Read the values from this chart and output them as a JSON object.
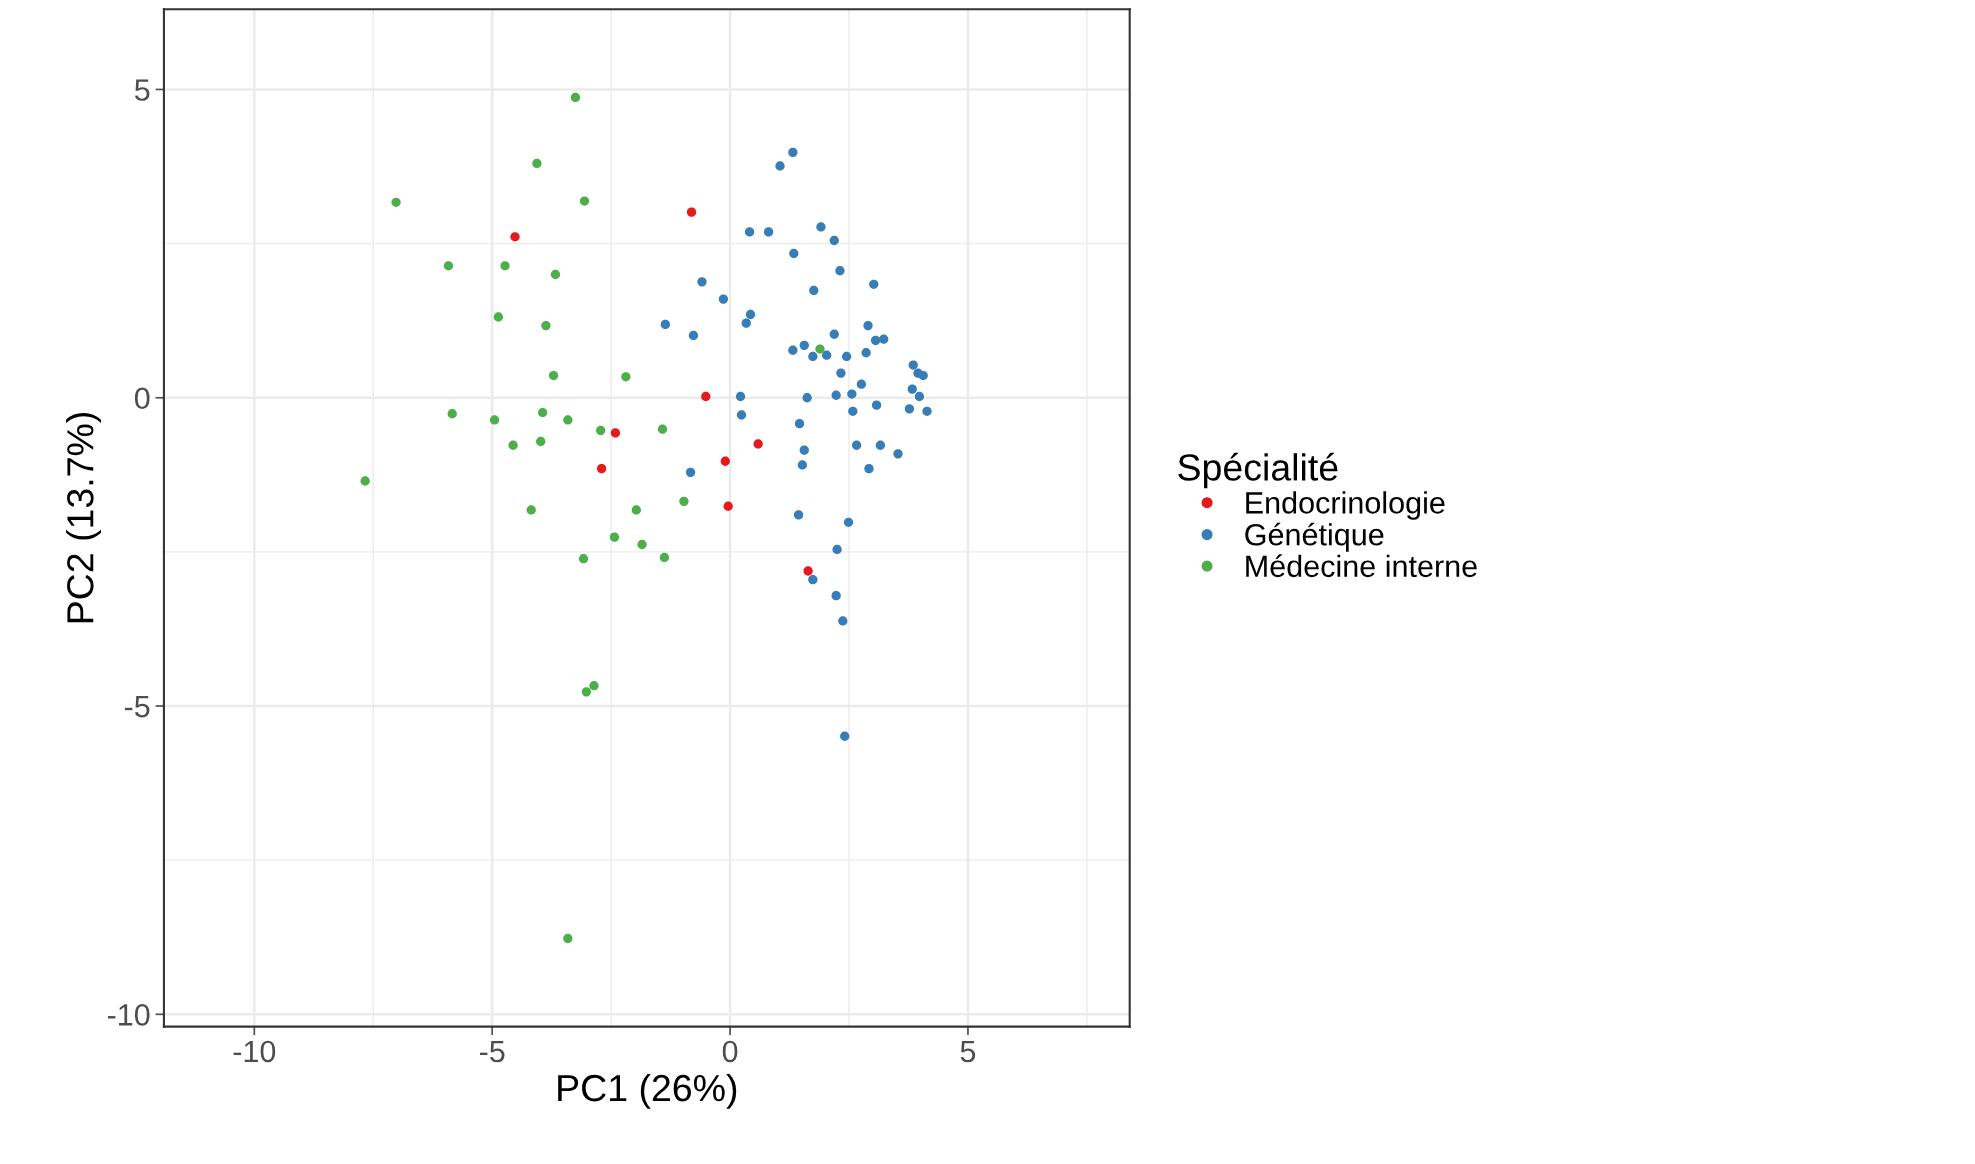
{
  "chart_data": {
    "type": "scatter",
    "xlabel": "PC1 (26%)",
    "ylabel": "PC2 (13.7%)",
    "legend_title": "Spécialité",
    "xlim": [
      -11.9,
      8.4
    ],
    "ylim": [
      -10.2,
      6.3
    ],
    "xticks": [
      -10,
      -5,
      0,
      5
    ],
    "yticks": [
      -10,
      -5,
      0,
      5
    ],
    "grid": true,
    "legend": "right",
    "marker": "circle",
    "series": [
      {
        "name": "Endocrinologie",
        "color": "#e41a1c",
        "x": [
          -4.52,
          -0.81,
          -0.51,
          -2.41,
          -2.7,
          0.59,
          -0.1,
          -0.04,
          1.64
        ],
        "values": [
          2.61,
          3.01,
          0.02,
          -0.57,
          -1.15,
          -0.75,
          -1.03,
          -1.76,
          -2.81
        ]
      },
      {
        "name": "Génétique",
        "color": "#377eb8",
        "x": [
          1.32,
          1.05,
          0.41,
          0.81,
          1.91,
          2.19,
          1.34,
          2.31,
          -0.59,
          3.02,
          1.76,
          -0.14,
          0.43,
          0.34,
          -1.36,
          -0.77,
          2.19,
          2.9,
          3.06,
          3.23,
          1.32,
          1.56,
          1.74,
          2.03,
          2.45,
          2.86,
          2.33,
          3.85,
          3.95,
          4.06,
          2.76,
          3.83,
          0.22,
          1.62,
          2.23,
          2.56,
          3.98,
          3.08,
          3.77,
          4.14,
          2.58,
          0.24,
          1.46,
          2.66,
          3.16,
          1.56,
          3.53,
          1.52,
          2.92,
          -0.83,
          1.44,
          2.49,
          2.25,
          1.74,
          2.23,
          2.37,
          2.41
        ],
        "values": [
          3.98,
          3.76,
          2.69,
          2.69,
          2.77,
          2.55,
          2.34,
          2.06,
          1.88,
          1.84,
          1.74,
          1.6,
          1.35,
          1.21,
          1.19,
          1.01,
          1.03,
          1.17,
          0.93,
          0.95,
          0.77,
          0.85,
          0.67,
          0.69,
          0.67,
          0.73,
          0.4,
          0.53,
          0.4,
          0.36,
          0.22,
          0.14,
          0.02,
          0.0,
          0.04,
          0.06,
          0.02,
          -0.12,
          -0.18,
          -0.22,
          -0.22,
          -0.28,
          -0.42,
          -0.77,
          -0.77,
          -0.85,
          -0.91,
          -1.09,
          -1.15,
          -1.21,
          -1.9,
          -2.02,
          -2.46,
          -2.95,
          -3.21,
          -3.62,
          -5.49
        ]
      },
      {
        "name": "Médecine interne",
        "color": "#4daf4a",
        "x": [
          -3.25,
          -4.06,
          -3.06,
          -7.02,
          -5.92,
          -4.73,
          -3.67,
          -4.87,
          -3.87,
          -3.71,
          -2.19,
          -5.84,
          -4.95,
          -3.94,
          -3.41,
          -2.72,
          -1.42,
          -4.56,
          -3.98,
          -7.67,
          -4.18,
          -1.97,
          -0.97,
          -2.43,
          -1.85,
          -3.08,
          -1.38,
          -2.86,
          -3.02,
          -3.41,
          1.89
        ],
        "values": [
          4.87,
          3.8,
          3.19,
          3.17,
          2.14,
          2.14,
          2.0,
          1.31,
          1.17,
          0.36,
          0.34,
          -0.26,
          -0.36,
          -0.24,
          -0.36,
          -0.53,
          -0.51,
          -0.77,
          -0.71,
          -1.35,
          -1.82,
          -1.82,
          -1.68,
          -2.26,
          -2.38,
          -2.61,
          -2.59,
          -4.67,
          -4.77,
          -8.77,
          0.79
        ]
      }
    ]
  }
}
